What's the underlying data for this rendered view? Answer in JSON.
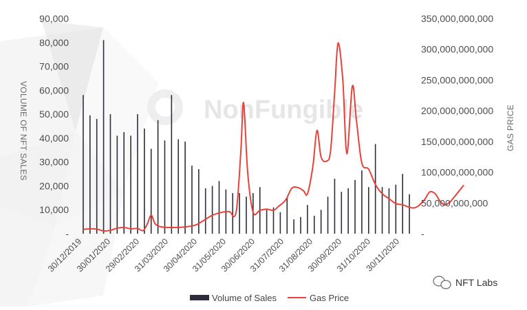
{
  "chart_data": {
    "type": "bar",
    "secondary_type": "line",
    "watermark": "NonFungible",
    "badge": "NFT Labs",
    "left_axis": {
      "label": "VOLUME OF NFT SALES",
      "ticks": [
        "-",
        "10,000",
        "20,000",
        "30,000",
        "40,000",
        "50,000",
        "60,000",
        "70,000",
        "80,000",
        "90,000"
      ],
      "ylim": [
        0,
        90000
      ]
    },
    "right_axis": {
      "label": "GAS PRICE",
      "ticks": [
        "-",
        "50,000,000,000",
        "100,000,000,000",
        "150,000,000,000",
        "200,000,000,000",
        "250,000,000,000",
        "300,000,000,000",
        "350,000,000,000"
      ],
      "ylim": [
        0,
        350000000000
      ]
    },
    "x_ticks": [
      "30/12/2019",
      "30/01/2020",
      "29/02/2020",
      "31/03/2020",
      "30/04/2020",
      "31/05/2020",
      "30/06/2020",
      "31/07/2020",
      "31/08/2020",
      "30/09/2020",
      "31/10/2020",
      "30/11/2020"
    ],
    "legend": [
      {
        "label": "Volume  of Sales",
        "color": "#2d2d3a"
      },
      {
        "label": "Gas Price",
        "color": "#e8413a"
      }
    ],
    "series": [
      {
        "name": "Volume  of Sales",
        "color": "#2d2d3a",
        "values": [
          58000,
          49500,
          48000,
          81000,
          50000,
          41000,
          42500,
          41000,
          50000,
          44000,
          35500,
          47500,
          39000,
          58000,
          39500,
          38500,
          28500,
          27000,
          19000,
          20000,
          22000,
          18500,
          17000,
          17000,
          15500,
          17000,
          19500,
          10000,
          11000,
          9000,
          15000,
          6000,
          7000,
          12000,
          7500,
          10000,
          15500,
          23000,
          17500,
          19000,
          22500,
          26500,
          19500,
          37500,
          19500,
          19000,
          20500,
          25000,
          16500
        ]
      },
      {
        "name": "Gas Price",
        "color": "#e8413a",
        "points": [
          [
            0,
            7000000000
          ],
          [
            1,
            8000000000
          ],
          [
            2,
            7500000000
          ],
          [
            3,
            4500000000
          ],
          [
            4,
            5500000000
          ],
          [
            5,
            9000000000
          ],
          [
            6,
            10000000000
          ],
          [
            7,
            8000000000
          ],
          [
            8,
            8500000000
          ],
          [
            8.8,
            5000000000
          ],
          [
            9.4,
            15000000000
          ],
          [
            10,
            30000000000
          ],
          [
            10.6,
            16000000000
          ],
          [
            11.5,
            11000000000
          ],
          [
            13,
            10000000000
          ],
          [
            15,
            11000000000
          ],
          [
            16.5,
            14000000000
          ],
          [
            17.5,
            20000000000
          ],
          [
            19,
            30000000000
          ],
          [
            20.5,
            35000000000
          ],
          [
            21.5,
            36000000000
          ],
          [
            22.5,
            35000000000
          ],
          [
            23.2,
            135000000000
          ],
          [
            23.6,
            213000000000
          ],
          [
            24.2,
            100000000000
          ],
          [
            25,
            35000000000
          ],
          [
            26,
            38000000000
          ],
          [
            27,
            40000000000
          ],
          [
            28,
            38000000000
          ],
          [
            28.8,
            45000000000
          ],
          [
            29.8,
            55000000000
          ],
          [
            30.7,
            74000000000
          ],
          [
            31.6,
            75000000000
          ],
          [
            32.4,
            70000000000
          ],
          [
            33,
            65000000000
          ],
          [
            33.8,
            110000000000
          ],
          [
            34.4,
            168000000000
          ],
          [
            35,
            125000000000
          ],
          [
            35.8,
            118000000000
          ],
          [
            36.4,
            135000000000
          ],
          [
            37,
            230000000000
          ],
          [
            37.5,
            310000000000
          ],
          [
            38.2,
            250000000000
          ],
          [
            38.8,
            130000000000
          ],
          [
            39.6,
            240000000000
          ],
          [
            40.2,
            185000000000
          ],
          [
            41,
            115000000000
          ],
          [
            42,
            105000000000
          ],
          [
            43,
            80000000000
          ],
          [
            44,
            65000000000
          ],
          [
            45,
            57000000000
          ],
          [
            46,
            49000000000
          ],
          [
            47,
            47000000000
          ],
          [
            48,
            43000000000
          ],
          [
            48.7,
            42000000000
          ],
          [
            49.3,
            45000000000
          ],
          [
            50.2,
            55000000000
          ],
          [
            51,
            68000000000
          ],
          [
            51.8,
            65000000000
          ],
          [
            52.5,
            53000000000
          ],
          [
            53.2,
            47000000000
          ],
          [
            54,
            52000000000
          ],
          [
            55.2,
            68000000000
          ],
          [
            56,
            79000000000
          ]
        ]
      }
    ]
  }
}
